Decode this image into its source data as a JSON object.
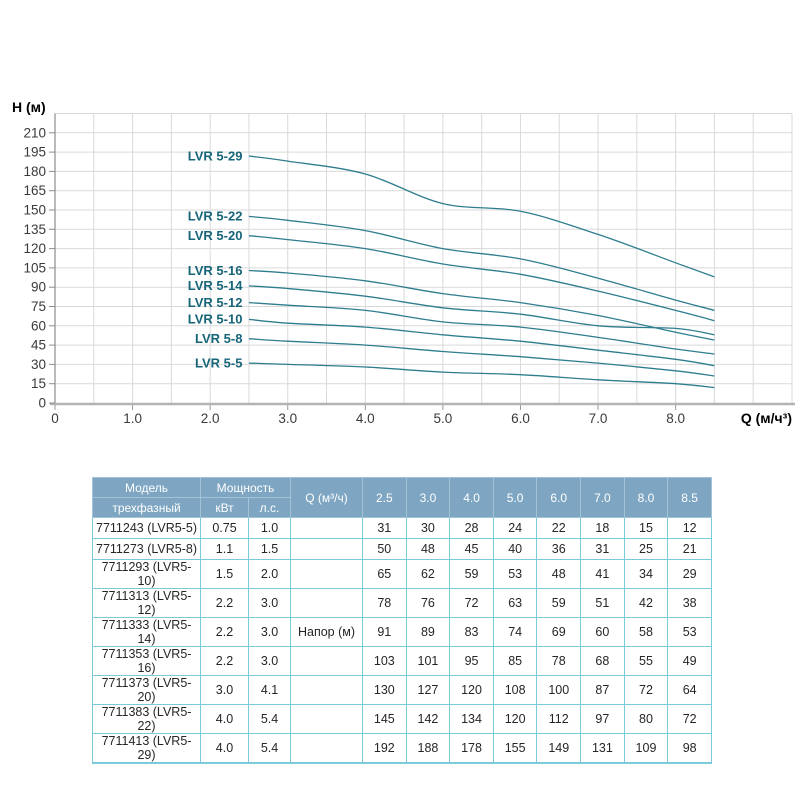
{
  "chart": {
    "y_axis_title": "H (м)",
    "x_axis_title": "Q (м/ч³)"
  },
  "chart_data": {
    "type": "line",
    "title": "",
    "xlabel": "Q (м/ч³)",
    "ylabel": "H (м)",
    "x": [
      2.5,
      3.0,
      4.0,
      5.0,
      6.0,
      7.0,
      8.0,
      8.5
    ],
    "series": [
      {
        "name": "LVR 5-29",
        "values": [
          192,
          188,
          178,
          155,
          149,
          131,
          109,
          98
        ]
      },
      {
        "name": "LVR 5-22",
        "values": [
          145,
          142,
          134,
          120,
          112,
          97,
          80,
          72
        ]
      },
      {
        "name": "LVR 5-20",
        "values": [
          130,
          127,
          120,
          108,
          100,
          87,
          72,
          64
        ]
      },
      {
        "name": "LVR 5-16",
        "values": [
          103,
          101,
          95,
          85,
          78,
          68,
          55,
          49
        ]
      },
      {
        "name": "LVR 5-14",
        "values": [
          91,
          89,
          83,
          74,
          69,
          60,
          58,
          53
        ]
      },
      {
        "name": "LVR 5-12",
        "values": [
          78,
          76,
          72,
          63,
          59,
          51,
          42,
          38
        ]
      },
      {
        "name": "LVR 5-10",
        "values": [
          65,
          62,
          59,
          53,
          48,
          41,
          34,
          29
        ]
      },
      {
        "name": "LVR 5-8",
        "values": [
          50,
          48,
          45,
          40,
          36,
          31,
          25,
          21
        ]
      },
      {
        "name": "LVR 5-5",
        "values": [
          31,
          30,
          28,
          24,
          22,
          18,
          15,
          12
        ]
      }
    ],
    "x_tick_labels": [
      "0",
      "1.0",
      "2.0",
      "3.0",
      "4.0",
      "5.0",
      "6.0",
      "7.0",
      "8.0"
    ],
    "x_tick_values": [
      0,
      1,
      2,
      3,
      4,
      5,
      6,
      7,
      8
    ],
    "y_tick_step": 15,
    "y_label_max": 210,
    "xlim": [
      0,
      9.5
    ],
    "ylim": [
      0,
      225
    ],
    "x_grid_step": 0.5,
    "grid": true,
    "legend_position": "labels-left-of-curve-start",
    "colors": {
      "curve": "#2e7d8e",
      "curve_label": "#176579",
      "grid": "#d9d9d9",
      "axis_y": "#8c8c8c",
      "axis_x": "#b3b3b3",
      "tick": "#999999"
    }
  },
  "table": {
    "header": {
      "model_title": "Модель",
      "model_subtitle": "трехфазный",
      "power_title": "Мощность",
      "power_kw": "кВт",
      "power_hp": "л.с.",
      "q_title": "Q (м³/ч)",
      "flow_columns": [
        "2.5",
        "3.0",
        "4.0",
        "5.0",
        "6.0",
        "7.0",
        "8.0",
        "8.5"
      ]
    },
    "head_label": "Напор (м)",
    "head_label_row_index": 4,
    "rows": [
      {
        "model": "7711243 (LVR5-5)",
        "kw": "0.75",
        "hp": "1.0",
        "values": [
          31,
          30,
          28,
          24,
          22,
          18,
          15,
          12
        ]
      },
      {
        "model": "7711273 (LVR5-8)",
        "kw": "1.1",
        "hp": "1.5",
        "values": [
          50,
          48,
          45,
          40,
          36,
          31,
          25,
          21
        ]
      },
      {
        "model": "7711293 (LVR5-10)",
        "kw": "1.5",
        "hp": "2.0",
        "values": [
          65,
          62,
          59,
          53,
          48,
          41,
          34,
          29
        ]
      },
      {
        "model": "7711313 (LVR5-12)",
        "kw": "2.2",
        "hp": "3.0",
        "values": [
          78,
          76,
          72,
          63,
          59,
          51,
          42,
          38
        ]
      },
      {
        "model": "7711333 (LVR5-14)",
        "kw": "2.2",
        "hp": "3.0",
        "values": [
          91,
          89,
          83,
          74,
          69,
          60,
          58,
          53
        ]
      },
      {
        "model": "7711353 (LVR5-16)",
        "kw": "2.2",
        "hp": "3.0",
        "values": [
          103,
          101,
          95,
          85,
          78,
          68,
          55,
          49
        ]
      },
      {
        "model": "7711373 (LVR5-20)",
        "kw": "3.0",
        "hp": "4.1",
        "values": [
          130,
          127,
          120,
          108,
          100,
          87,
          72,
          64
        ]
      },
      {
        "model": "7711383 (LVR5-22)",
        "kw": "4.0",
        "hp": "5.4",
        "values": [
          145,
          142,
          134,
          120,
          112,
          97,
          80,
          72
        ]
      },
      {
        "model": "7711413 (LVR5-29)",
        "kw": "4.0",
        "hp": "5.4",
        "values": [
          192,
          188,
          178,
          155,
          149,
          131,
          109,
          98
        ]
      }
    ],
    "colors": {
      "header_bg": "#7ea6c2",
      "header_text": "#ffffff",
      "header_border": "#a3c4d8",
      "border": "#79cbda",
      "body_text": "#262626"
    }
  }
}
